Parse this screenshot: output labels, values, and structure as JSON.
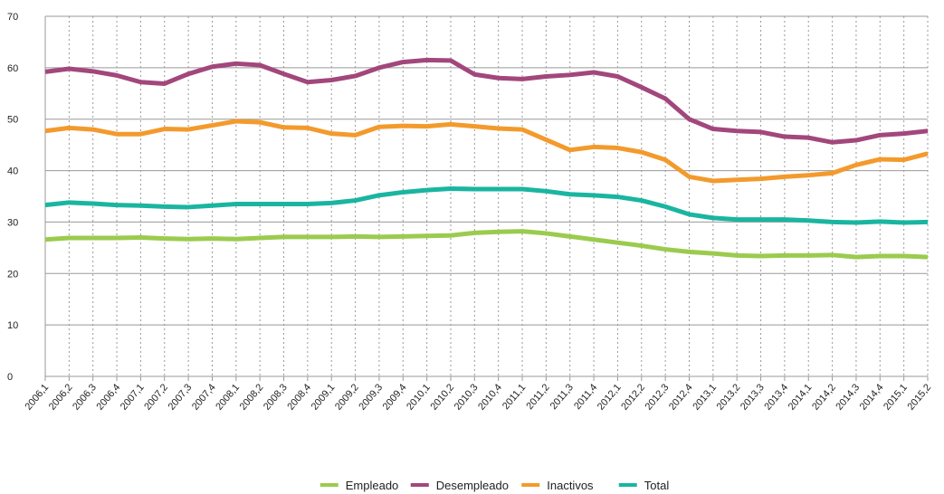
{
  "chart_data": {
    "type": "line",
    "categories": [
      "2006,1",
      "2006,2",
      "2006,3",
      "2006,4",
      "2007,1",
      "2007,2",
      "2007,3",
      "2007,4",
      "2008,1",
      "2008,2",
      "2008,3",
      "2008,4",
      "2009,1",
      "2009,2",
      "2009,3",
      "2009,4",
      "2010,1",
      "2010,2",
      "2010,3",
      "2010,4",
      "2011,1",
      "2011,2",
      "2011,3",
      "2011,4",
      "2012,1",
      "2012,2",
      "2012,3",
      "2012,4",
      "2013,1",
      "2013,2",
      "2013,3",
      "2013,4",
      "2014,1",
      "2014,2",
      "2014,3",
      "2014,4",
      "2015,1",
      "2015,2"
    ],
    "series": [
      {
        "name": "Empleado",
        "color": "#9bcb4e",
        "values": [
          26.6,
          26.9,
          26.9,
          26.9,
          27.0,
          26.8,
          26.7,
          26.8,
          26.7,
          26.9,
          27.1,
          27.1,
          27.1,
          27.2,
          27.1,
          27.2,
          27.3,
          27.4,
          27.9,
          28.1,
          28.2,
          27.8,
          27.2,
          26.6,
          26.0,
          25.4,
          24.7,
          24.2,
          23.9,
          23.5,
          23.4,
          23.5,
          23.5,
          23.6,
          23.2,
          23.4,
          23.4,
          23.2
        ]
      },
      {
        "name": "Desempleado",
        "color": "#a2477c",
        "values": [
          59.2,
          59.8,
          59.3,
          58.5,
          57.2,
          56.9,
          58.8,
          60.2,
          60.8,
          60.5,
          58.8,
          57.2,
          57.6,
          58.4,
          60.0,
          61.1,
          61.5,
          61.4,
          58.7,
          58.0,
          57.8,
          58.3,
          58.6,
          59.1,
          58.3,
          56.2,
          54.0,
          50.0,
          48.1,
          47.7,
          47.5,
          46.6,
          46.4,
          45.5,
          45.9,
          46.9,
          47.2,
          47.7
        ]
      },
      {
        "name": "Inactivos",
        "color": "#f39a2c",
        "values": [
          47.7,
          48.3,
          48.0,
          47.1,
          47.1,
          48.1,
          48.0,
          48.8,
          49.6,
          49.4,
          48.4,
          48.3,
          47.2,
          46.9,
          48.5,
          48.7,
          48.6,
          49.0,
          48.6,
          48.2,
          48.0,
          46.0,
          44.0,
          44.6,
          44.4,
          43.6,
          42.1,
          38.8,
          38.0,
          38.2,
          38.4,
          38.8,
          39.1,
          39.5,
          41.1,
          42.2,
          42.1,
          43.3
        ]
      },
      {
        "name": "Total",
        "color": "#1ab5a0",
        "values": [
          33.3,
          33.8,
          33.6,
          33.3,
          33.2,
          33.0,
          32.9,
          33.2,
          33.5,
          33.5,
          33.5,
          33.5,
          33.7,
          34.2,
          35.2,
          35.8,
          36.2,
          36.5,
          36.4,
          36.4,
          36.4,
          36.0,
          35.4,
          35.2,
          34.9,
          34.2,
          33.0,
          31.5,
          30.8,
          30.5,
          30.5,
          30.5,
          30.3,
          30.0,
          29.9,
          30.1,
          29.9,
          30.0
        ]
      }
    ],
    "ylim": [
      0,
      70
    ],
    "yticks": [
      0,
      10,
      20,
      30,
      40,
      50,
      60,
      70
    ],
    "grid": true,
    "legend": "bottom"
  }
}
